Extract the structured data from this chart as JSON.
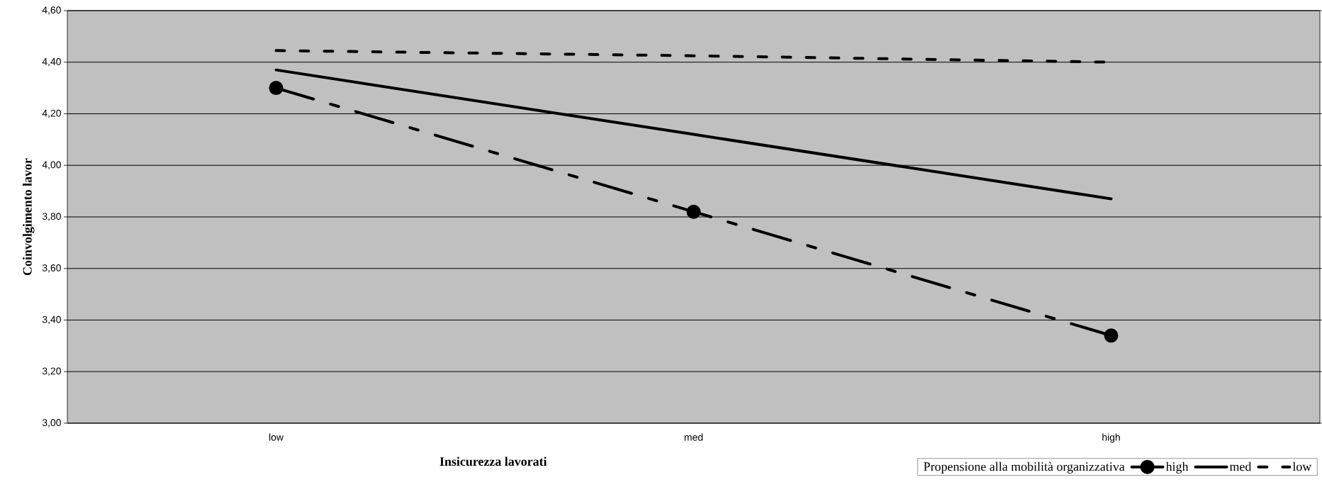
{
  "chart_data": {
    "type": "line",
    "xlabel": "Insicurezza lavorati",
    "ylabel": "Coinvolgimento lavor",
    "legend_title": "Propensione alla mobilità organizzativa",
    "categories": [
      "low",
      "med",
      "high"
    ],
    "series": [
      {
        "name": "high",
        "color": "#000000",
        "values": [
          4.3,
          3.82,
          3.34
        ],
        "marker": "circle",
        "line_style": "dashdot"
      },
      {
        "name": "med",
        "color": "#000000",
        "values": [
          4.37,
          4.12,
          3.87
        ],
        "marker": "none",
        "line_style": "solid"
      },
      {
        "name": "low",
        "color": "#000000",
        "values": [
          4.445,
          4.425,
          4.4
        ],
        "marker": "none",
        "line_style": "dashed"
      }
    ],
    "ylim": [
      3.0,
      4.6
    ],
    "yticks": [
      {
        "value": 3.0,
        "label": "3,00"
      },
      {
        "value": 3.2,
        "label": "3,20"
      },
      {
        "value": 3.4,
        "label": "3,40"
      },
      {
        "value": 3.6,
        "label": "3,60"
      },
      {
        "value": 3.8,
        "label": "3,80"
      },
      {
        "value": 4.0,
        "label": "4,00"
      },
      {
        "value": 4.2,
        "label": "4,20"
      },
      {
        "value": 4.4,
        "label": "4,40"
      },
      {
        "value": 4.6,
        "label": "4,60"
      }
    ],
    "grid": "y",
    "legend": "bottom right"
  }
}
